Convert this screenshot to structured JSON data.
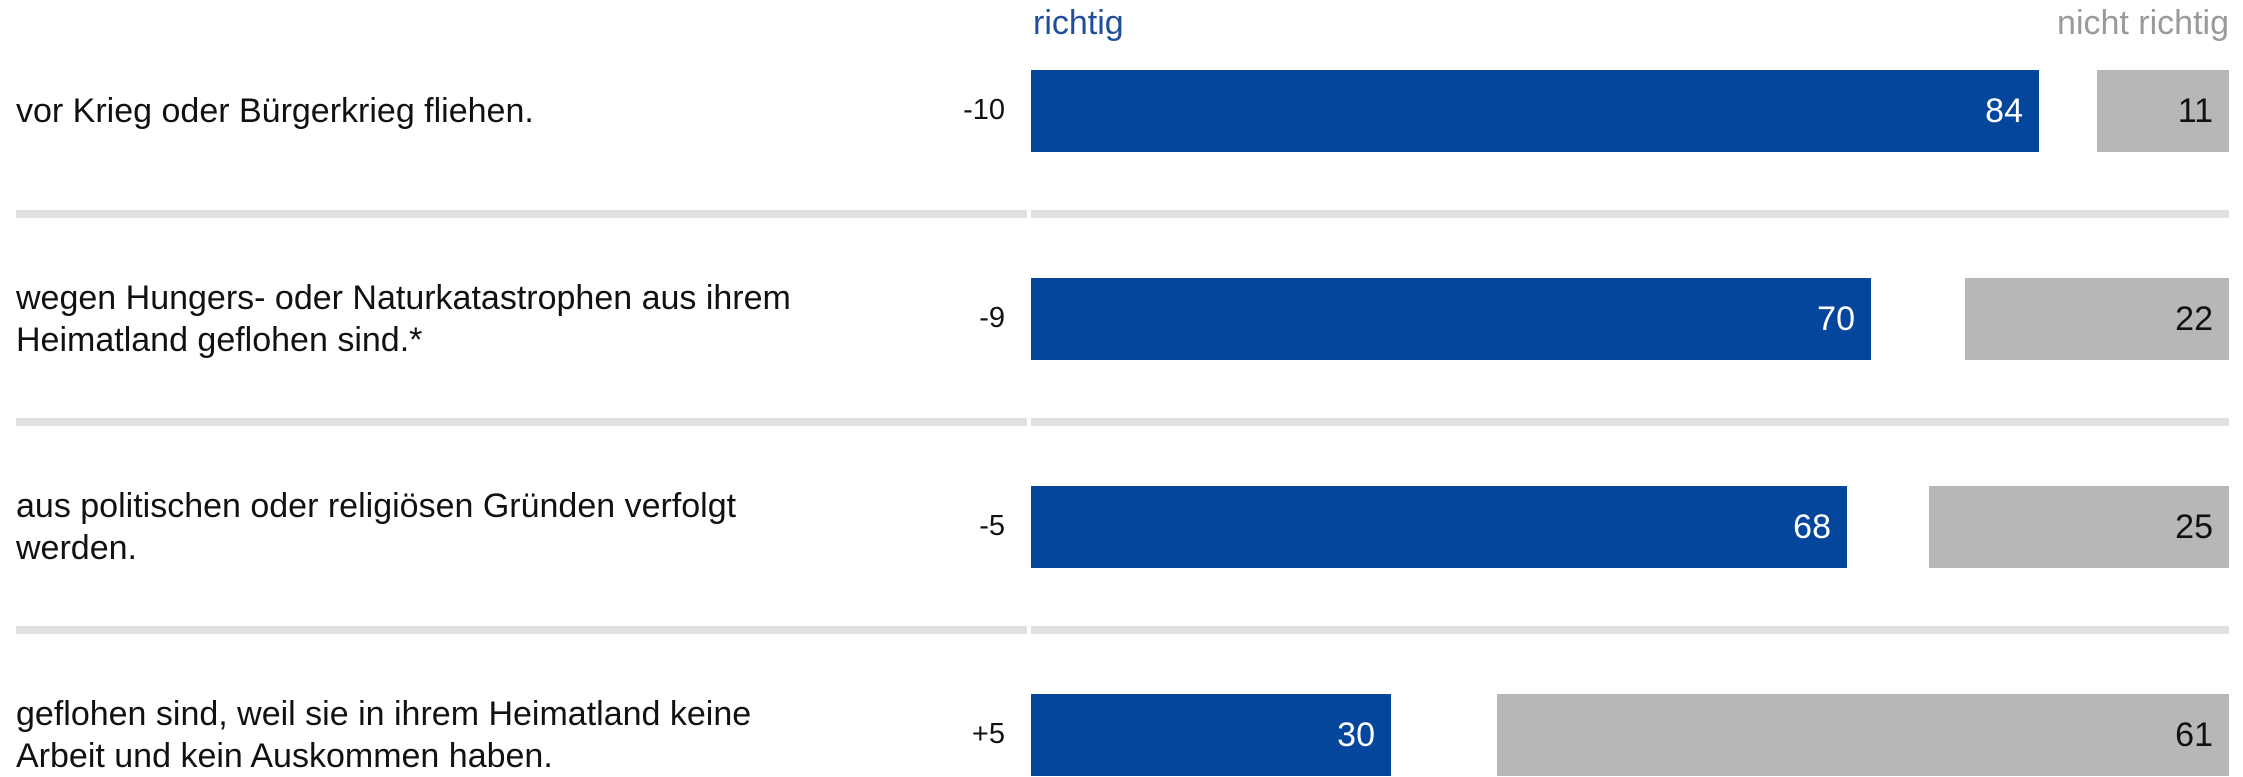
{
  "colors": {
    "richtig": "#03469c",
    "nicht_richtig": "#b7b7b7",
    "separator": "#e1e1e1"
  },
  "chart_data": {
    "type": "bar",
    "orientation": "horizontal",
    "stacked_layout": "diverging-right",
    "header": {
      "left": "richtig",
      "right": "nicht richtig"
    },
    "categories": [
      "vor Krieg oder Bürgerkrieg fliehen.",
      "wegen Hungers- oder Naturkatastrophen aus ihrem Heimatland geflohen sind.*",
      "aus politischen oder religiösen Gründen verfolgt werden.",
      "geflohen sind, weil sie in ihrem Heimatland keine Arbeit und kein Auskommen haben."
    ],
    "category_lines": [
      [
        "vor Krieg oder Bürgerkrieg fliehen."
      ],
      [
        "wegen Hungers- oder Naturkatastrophen aus ihrem",
        "Heimatland geflohen sind.*"
      ],
      [
        "aus politischen oder religiösen Gründen verfolgt",
        "werden."
      ],
      [
        "geflohen sind, weil sie in ihrem Heimatland keine",
        "Arbeit und kein Auskommen haben."
      ]
    ],
    "differences": [
      "-10",
      "-9",
      "-5",
      "+5"
    ],
    "series": [
      {
        "name": "richtig",
        "values": [
          84,
          70,
          68,
          30
        ]
      },
      {
        "name": "nicht richtig",
        "values": [
          11,
          22,
          25,
          61
        ]
      }
    ],
    "scale_max": 100,
    "grid": false,
    "legend": "top"
  }
}
